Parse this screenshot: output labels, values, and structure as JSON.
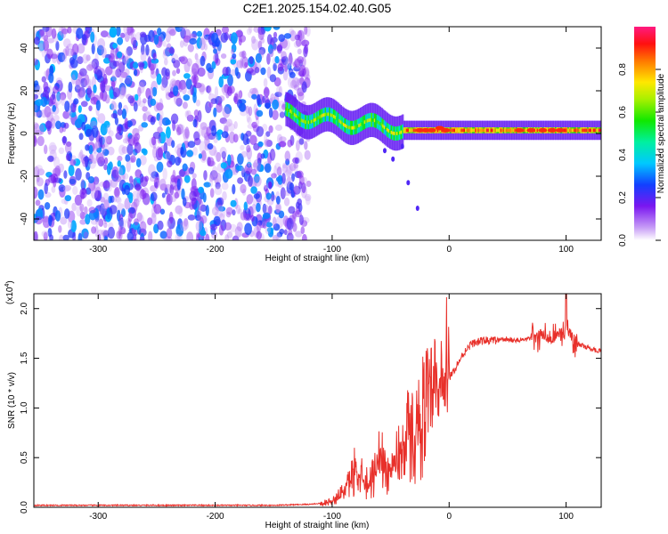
{
  "title": "C2E1.2025.154.02.40.G05",
  "chart_data": [
    {
      "type": "heatmap",
      "xlabel": "Height of straight line (km)",
      "ylabel": "Frequency (Hz)",
      "xlim": [
        -355,
        130
      ],
      "ylim": [
        -50,
        50
      ],
      "x_ticks": [
        -300,
        -200,
        -100,
        0,
        100
      ],
      "x_tick_labels": [
        "-300",
        "-200",
        "-100",
        "0",
        "100"
      ],
      "y_ticks": [
        -40,
        -20,
        0,
        20,
        40
      ],
      "y_tick_labels": [
        "-40",
        "-20",
        "0",
        "20",
        "40"
      ],
      "colorbar": {
        "label": "Normalized spectral amplitude",
        "range": [
          0,
          1
        ],
        "ticks": [
          0.0,
          0.2,
          0.4,
          0.6,
          0.8
        ],
        "tick_labels": [
          "0.0",
          "0.2",
          "0.4",
          "0.6",
          "0.8"
        ],
        "colormap": "rainbow (white - violet - blue - cyan - green - yellow - orange - red - magenta)"
      },
      "description_regions": [
        {
          "x_range": [
            -355,
            -120
          ],
          "freq_range": [
            -50,
            50
          ],
          "amplitude": "low (0.0-0.3), broadband noise"
        },
        {
          "x_range": [
            -140,
            -40
          ],
          "center_freq_start": 9,
          "center_freq_end": 2,
          "band_halfwidth": 6,
          "amplitude": "0.3-0.7"
        },
        {
          "x_range": [
            -40,
            130
          ],
          "center_freq": 1.5,
          "band_halfwidth": 2.5,
          "amplitude": "0.6-1.0"
        }
      ]
    },
    {
      "type": "line",
      "xlabel": "Height of straight line (km)",
      "ylabel": "SNR (10 * v/v)",
      "y_multiplier_label": "(x10",
      "y_multiplier_exp": "4",
      "xlim": [
        -355,
        130
      ],
      "ylim": [
        0,
        2.15
      ],
      "x_ticks": [
        -300,
        -200,
        -100,
        0,
        100
      ],
      "x_tick_labels": [
        "-300",
        "-200",
        "-100",
        "0",
        "100"
      ],
      "y_ticks": [
        0,
        0.5,
        1.0,
        1.5,
        2.0
      ],
      "y_tick_labels": [
        "0.0",
        "0.5",
        "1.0",
        "1.5",
        "2.0"
      ],
      "line_color": "#e8302a",
      "series": [
        {
          "x": [
            -355,
            -300,
            -250,
            -200,
            -150,
            -120,
            -110,
            -100,
            -95,
            -90,
            -85,
            -80,
            -75,
            -70,
            -65,
            -60,
            -55,
            -50,
            -45,
            -40,
            -35,
            -30,
            -25,
            -20,
            -15,
            -10,
            -5,
            0,
            5,
            10,
            15,
            20,
            30,
            40,
            50,
            60,
            70,
            75,
            80,
            85,
            90,
            95,
            100,
            105,
            110,
            115,
            120,
            125,
            130
          ],
          "y": [
            0.02,
            0.02,
            0.02,
            0.02,
            0.02,
            0.03,
            0.04,
            0.06,
            0.1,
            0.18,
            0.25,
            0.4,
            0.35,
            0.25,
            0.3,
            0.5,
            0.45,
            0.35,
            0.5,
            0.6,
            0.75,
            0.7,
            0.85,
            1.0,
            1.05,
            1.1,
            1.2,
            1.3,
            1.4,
            1.5,
            1.6,
            1.65,
            1.68,
            1.68,
            1.69,
            1.68,
            1.7,
            1.72,
            1.75,
            1.7,
            1.7,
            1.75,
            1.8,
            1.72,
            1.65,
            1.62,
            1.6,
            1.58,
            1.58
          ]
        }
      ]
    }
  ]
}
